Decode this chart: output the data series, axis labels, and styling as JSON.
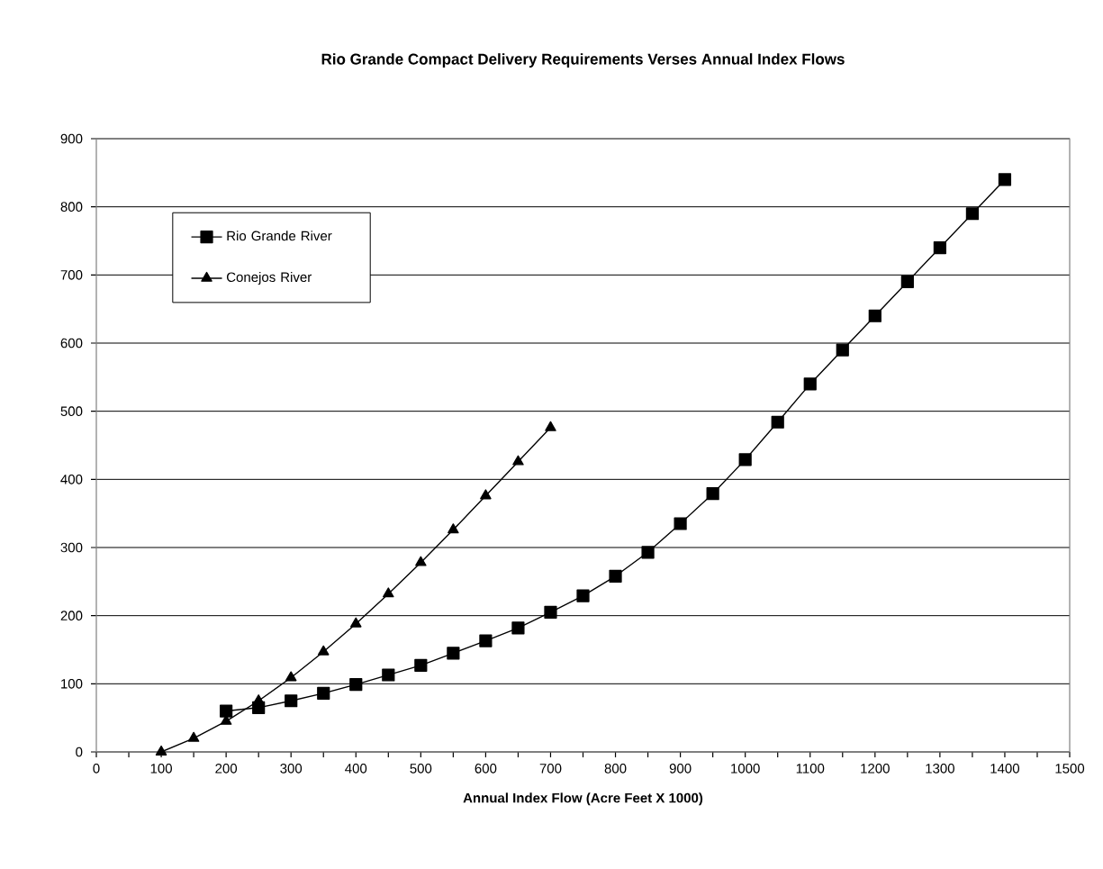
{
  "chart_data": {
    "type": "line",
    "title": "Rio Grande Compact Delivery Requirements Verses Annual Index Flows",
    "xlabel": "Annual Index Flow (Acre Feet X 1000)",
    "xlim": [
      0,
      1500
    ],
    "ylim": [
      0,
      900
    ],
    "xticks": [
      0,
      {
        "value": 50,
        "label": null
      },
      100,
      {
        "value": 150,
        "label": null
      },
      200,
      {
        "value": 250,
        "label": null
      },
      300,
      {
        "value": 350,
        "label": null
      },
      400,
      {
        "value": 450,
        "label": null
      },
      500,
      {
        "value": 550,
        "label": null
      },
      600,
      {
        "value": 650,
        "label": null
      },
      700,
      {
        "value": 750,
        "label": null
      },
      800,
      {
        "value": 850,
        "label": null
      },
      900,
      {
        "value": 950,
        "label": null
      },
      1000,
      {
        "value": 1050,
        "label": null
      },
      1100,
      {
        "value": 1150,
        "label": null
      },
      1200,
      {
        "value": 1250,
        "label": null
      },
      1300,
      {
        "value": 1350,
        "label": null
      },
      1400,
      {
        "value": 1450,
        "label": null
      },
      1500
    ],
    "yticks": [
      0,
      100,
      200,
      300,
      400,
      500,
      600,
      700,
      800,
      900
    ],
    "grid": "y",
    "legend": "top left",
    "line_style": "solid",
    "series": [
      {
        "name": "Rio Grande River",
        "color": "#000000",
        "marker": "square",
        "x": [
          200,
          250,
          300,
          350,
          400,
          450,
          500,
          550,
          600,
          650,
          700,
          750,
          800,
          850,
          900,
          950,
          1000,
          1050,
          1100,
          1150,
          1200,
          1250,
          1300,
          1350,
          1400
        ],
        "values": [
          60,
          65,
          75,
          86,
          99,
          113,
          127,
          145,
          163,
          182,
          205,
          229,
          258,
          293,
          335,
          379,
          429,
          484,
          540,
          590,
          640,
          690,
          740,
          790,
          840
        ]
      },
      {
        "name": "Conejos River",
        "color": "#000000",
        "marker": "triangle",
        "x": [
          100,
          150,
          200,
          250,
          300,
          350,
          400,
          450,
          500,
          550,
          600,
          650,
          700
        ],
        "values": [
          0,
          20,
          45,
          75,
          109,
          147,
          188,
          232,
          278,
          326,
          376,
          426,
          476
        ]
      }
    ]
  }
}
